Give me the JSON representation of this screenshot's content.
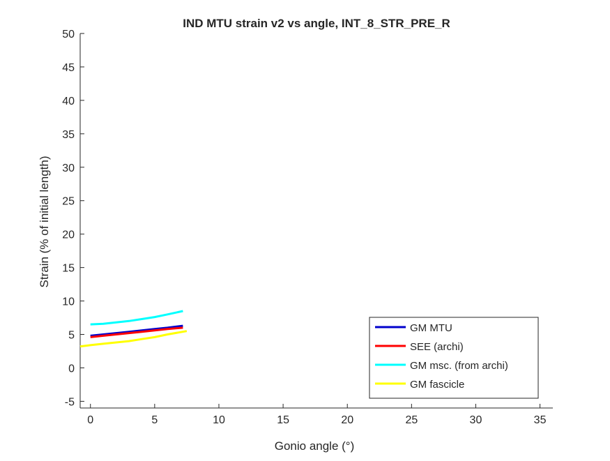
{
  "chart_data": {
    "type": "line",
    "title": "IND MTU strain v2 vs angle, INT_8_STR_PRE_R",
    "xlabel": "Gonio angle (°)",
    "ylabel": "Strain (% of initial length)",
    "xlim": [
      -0.8,
      36
    ],
    "ylim": [
      -6,
      50
    ],
    "xticks": [
      0,
      5,
      10,
      15,
      20,
      25,
      30,
      35
    ],
    "yticks": [
      -5,
      0,
      5,
      10,
      15,
      20,
      25,
      30,
      35,
      40,
      45,
      50
    ],
    "grid": false,
    "legend_position": "bottom-right",
    "series": [
      {
        "name": "GM MTU",
        "color": "#0000CC",
        "x": [
          0,
          1,
          2,
          3,
          4,
          5,
          6,
          7.2
        ],
        "y": [
          4.8,
          5.0,
          5.2,
          5.4,
          5.6,
          5.8,
          6.0,
          6.3
        ]
      },
      {
        "name": "SEE (archi)",
        "color": "#FF0000",
        "x": [
          0,
          1,
          2,
          3,
          4,
          5,
          6,
          7.2
        ],
        "y": [
          4.6,
          4.8,
          5.0,
          5.2,
          5.4,
          5.6,
          5.8,
          6.0
        ]
      },
      {
        "name": "GM msc. (from archi)",
        "color": "#00FFFF",
        "x": [
          0,
          1,
          2,
          3,
          4,
          5,
          6,
          7.2
        ],
        "y": [
          6.5,
          6.6,
          6.8,
          7.0,
          7.3,
          7.6,
          8.0,
          8.5
        ]
      },
      {
        "name": "GM fascicle",
        "color": "#FFFF00",
        "x": [
          -0.8,
          0,
          1,
          2,
          3,
          4,
          5,
          6,
          7.5
        ],
        "y": [
          3.2,
          3.4,
          3.6,
          3.8,
          4.0,
          4.3,
          4.6,
          5.0,
          5.5
        ]
      }
    ]
  }
}
